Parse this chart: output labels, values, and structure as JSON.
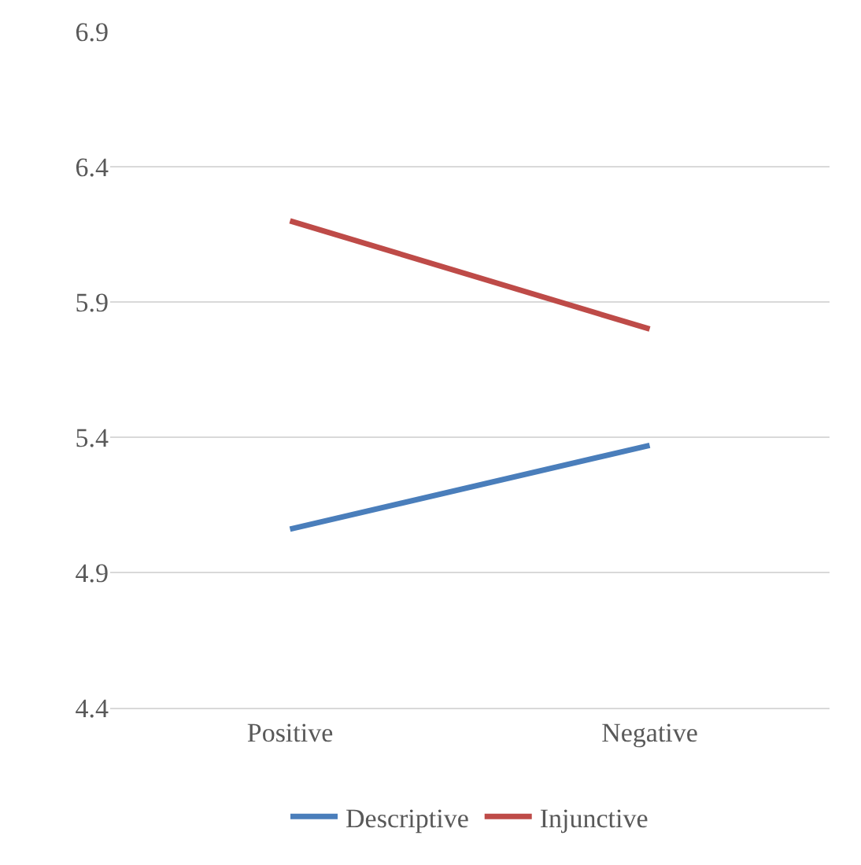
{
  "chart_data": {
    "type": "line",
    "categories": [
      "Positive",
      "Negative"
    ],
    "series": [
      {
        "name": "Descriptive",
        "color": "#4a7ebb",
        "values": [
          5.06,
          5.37
        ]
      },
      {
        "name": "Injunctive",
        "color": "#be4b48",
        "values": [
          6.2,
          5.8
        ]
      }
    ],
    "ylim": [
      4.4,
      6.9
    ],
    "yticks": [
      4.4,
      4.9,
      5.4,
      5.9,
      6.4,
      6.9
    ],
    "grid": "y",
    "legend": "bottom",
    "marker": "none",
    "line_style": "solid"
  }
}
